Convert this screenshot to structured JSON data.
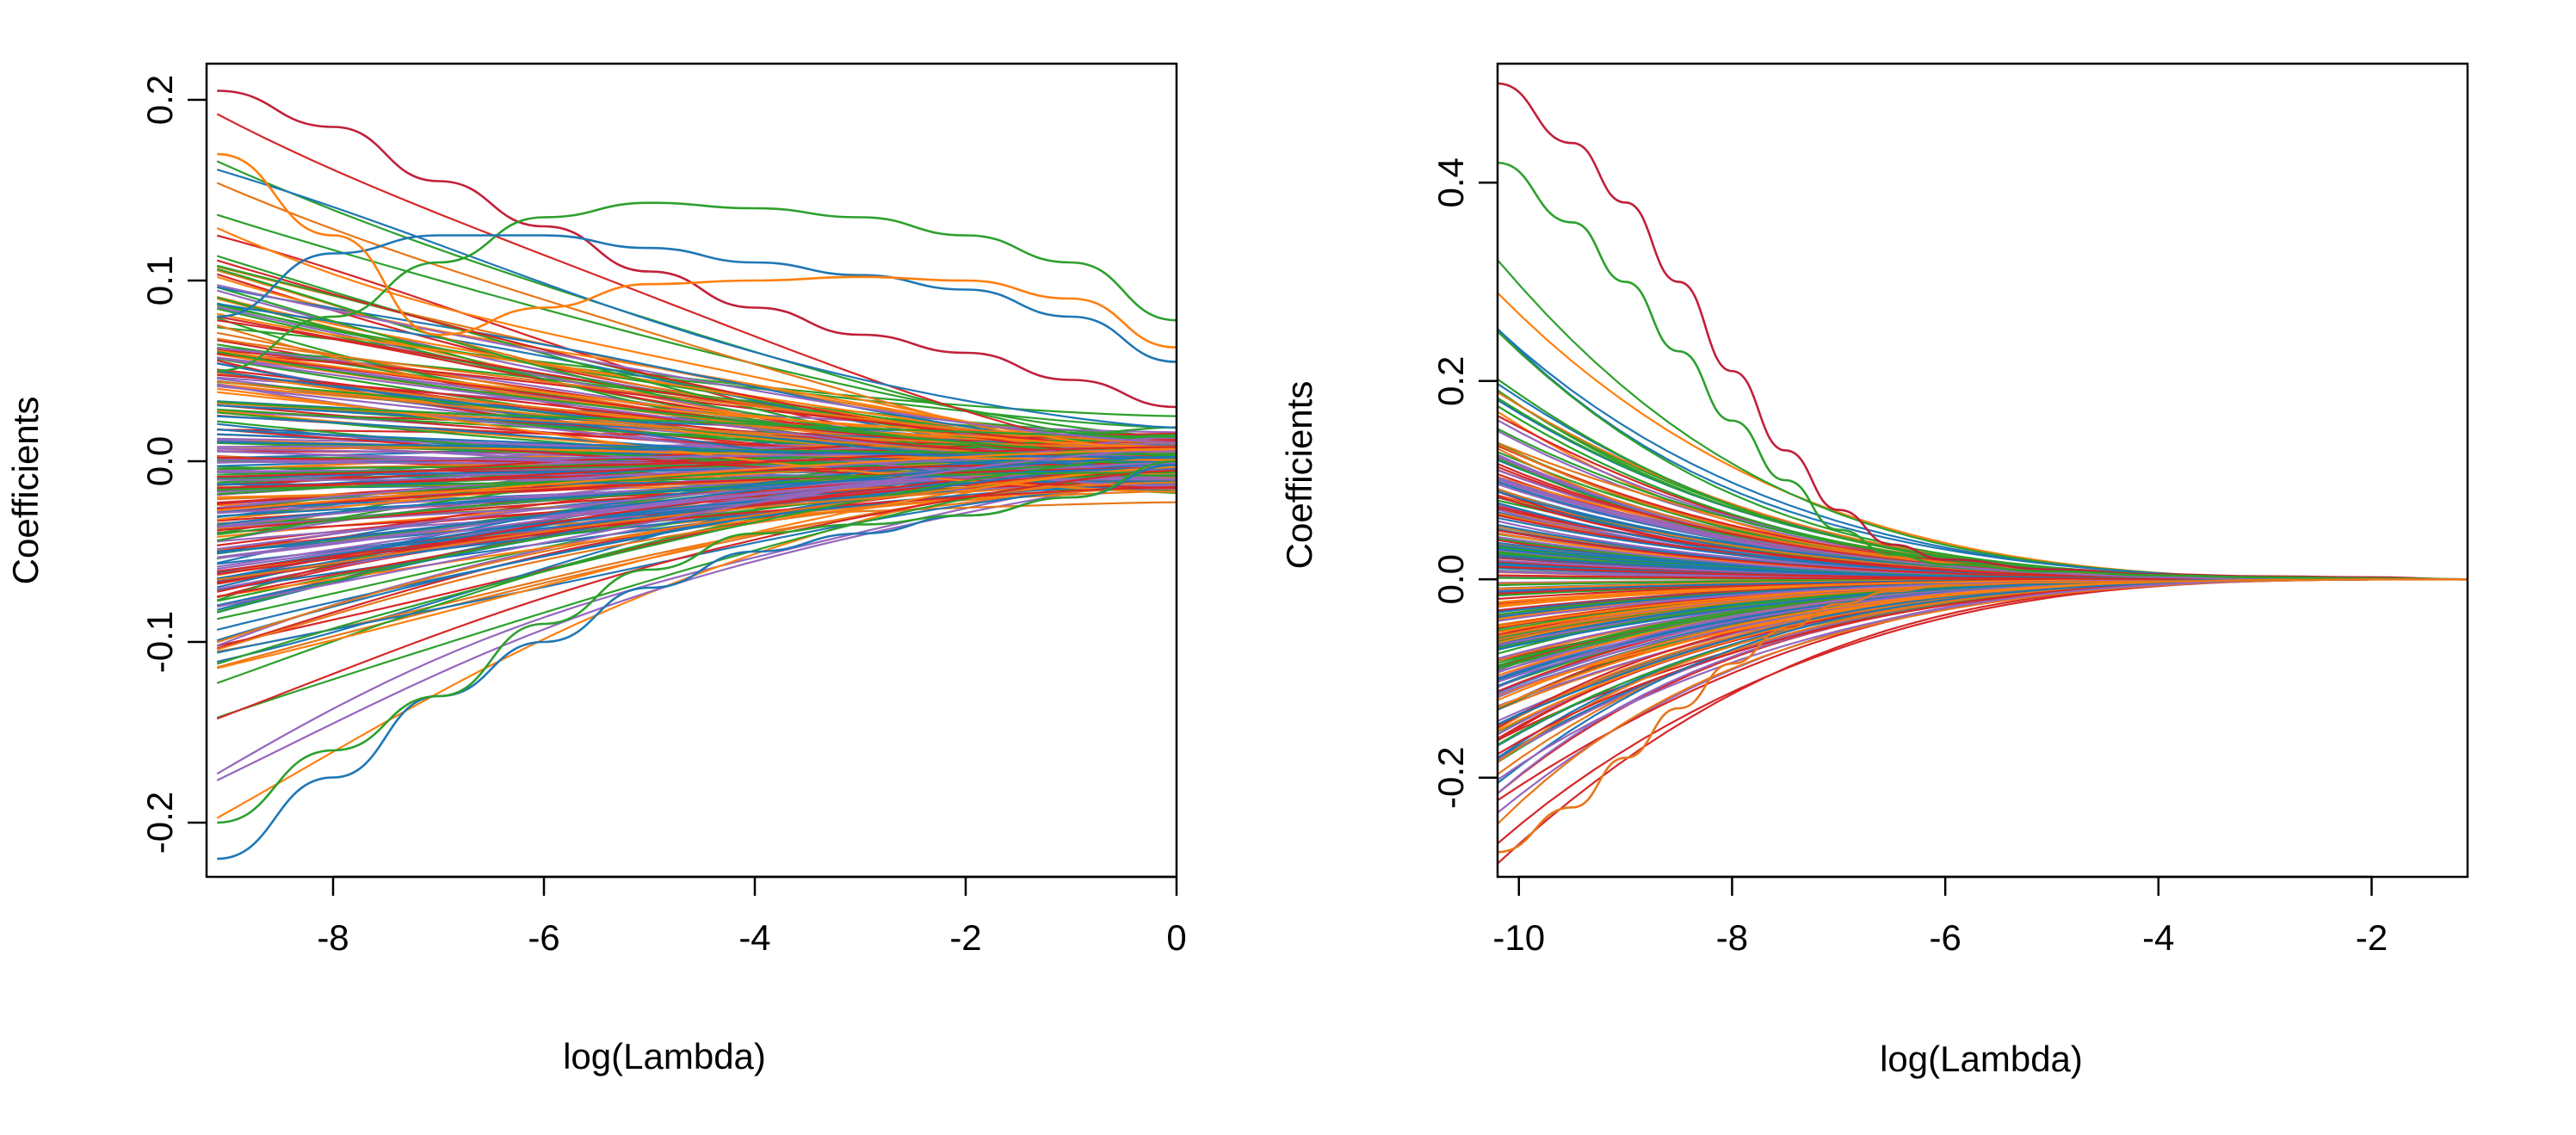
{
  "colors": [
    "#d62728",
    "#2ca02c",
    "#1f77b4",
    "#9467bd",
    "#e6771a",
    "#d62728",
    "#2ca02c",
    "#1f77b4",
    "#9467bd",
    "#ff7f0e"
  ],
  "chart_data": [
    {
      "type": "line",
      "series_description": "coefficient paths (hundreds of lines)",
      "xlabel": "log(Lambda)",
      "ylabel": "Coefficients",
      "xlim": [
        -9.2,
        0
      ],
      "ylim": [
        -0.23,
        0.22
      ],
      "xticks": [
        -8,
        -6,
        -4,
        -2,
        0
      ],
      "xtick_labels": [
        "-8",
        "-6",
        "-4",
        "-2",
        "0"
      ],
      "yticks": [
        -0.2,
        -0.1,
        0.0,
        0.1,
        0.2
      ],
      "ytick_labels": [
        "-0.2",
        "-0.1",
        "0.0",
        "0.1",
        "0.2"
      ],
      "grid": false,
      "highlighted_paths": [
        {
          "color": "#c0203a",
          "x": [
            -9.1,
            -8,
            -7,
            -6,
            -5,
            -4,
            -3,
            -2,
            -1,
            0
          ],
          "y": [
            0.205,
            0.185,
            0.155,
            0.13,
            0.105,
            0.085,
            0.07,
            0.06,
            0.045,
            0.03
          ]
        },
        {
          "color": "#2ca02c",
          "x": [
            -9.1,
            -8,
            -7,
            -6,
            -5,
            -4,
            -3,
            -2,
            -1,
            0
          ],
          "y": [
            0.05,
            0.08,
            0.11,
            0.135,
            0.143,
            0.14,
            0.135,
            0.125,
            0.11,
            0.078
          ]
        },
        {
          "color": "#1f77b4",
          "x": [
            -9.1,
            -8,
            -7,
            -6,
            -5,
            -4,
            -3,
            -2,
            -1,
            0
          ],
          "y": [
            0.08,
            0.115,
            0.125,
            0.125,
            0.118,
            0.11,
            0.103,
            0.095,
            0.08,
            0.055
          ]
        },
        {
          "color": "#ff7f0e",
          "x": [
            -9.1,
            -8,
            -7,
            -6,
            -5,
            -4,
            -3,
            -2,
            -1,
            0
          ],
          "y": [
            0.17,
            0.125,
            0.07,
            0.085,
            0.098,
            0.1,
            0.102,
            0.1,
            0.09,
            0.063
          ]
        },
        {
          "color": "#1f77b4",
          "x": [
            -9.1,
            -8,
            -7,
            -6,
            -5,
            -4,
            -3,
            -2,
            -1,
            0
          ],
          "y": [
            -0.22,
            -0.175,
            -0.13,
            -0.1,
            -0.07,
            -0.05,
            -0.04,
            -0.03,
            -0.02,
            -0.002
          ]
        },
        {
          "color": "#2ca02c",
          "x": [
            -9.1,
            -8,
            -7,
            -6,
            -5,
            -4,
            -3,
            -2,
            -1,
            0
          ],
          "y": [
            -0.2,
            -0.16,
            -0.13,
            -0.09,
            -0.06,
            -0.04,
            -0.035,
            -0.03,
            -0.02,
            0.0
          ]
        }
      ],
      "random_paths": {
        "count": 260,
        "start_spread": 0.12,
        "end_spread": 0.008,
        "seed": 7
      }
    },
    {
      "type": "line",
      "series_description": "coefficient paths (hundreds of lines)",
      "xlabel": "log(Lambda)",
      "ylabel": "Coefficients",
      "xlim": [
        -10.2,
        -1.1
      ],
      "ylim": [
        -0.3,
        0.52
      ],
      "xticks": [
        -10,
        -8,
        -6,
        -4,
        -2
      ],
      "xtick_labels": [
        "-10",
        "-8",
        "-6",
        "-4",
        "-2"
      ],
      "yticks": [
        -0.2,
        0.0,
        0.2,
        0.4
      ],
      "ytick_labels": [
        "-0.2",
        "0.0",
        "0.2",
        "0.4"
      ],
      "grid": false,
      "highlighted_paths": [
        {
          "color": "#c0203a",
          "x": [
            -10.2,
            -9.5,
            -9,
            -8.5,
            -8,
            -7.5,
            -7,
            -6.5,
            -6,
            -5,
            -4,
            -3,
            -2,
            -1.1
          ],
          "y": [
            0.5,
            0.44,
            0.38,
            0.3,
            0.21,
            0.13,
            0.07,
            0.035,
            0.02,
            0.01,
            0.005,
            0.003,
            0.002,
            0.0
          ]
        },
        {
          "color": "#2ca02c",
          "x": [
            -10.2,
            -9.5,
            -9,
            -8.5,
            -8,
            -7.5,
            -7,
            -6.5,
            -6,
            -5,
            -4,
            -3,
            -2,
            -1.1
          ],
          "y": [
            0.42,
            0.36,
            0.3,
            0.23,
            0.16,
            0.1,
            0.05,
            0.025,
            0.015,
            0.008,
            0.004,
            0.002,
            0.001,
            0.0
          ]
        },
        {
          "color": "#e6771a",
          "x": [
            -10.2,
            -9.5,
            -9,
            -8.5,
            -8,
            -7.5,
            -7,
            -6.5,
            -6,
            -5,
            -4,
            -3,
            -2,
            -1.1
          ],
          "y": [
            -0.275,
            -0.23,
            -0.18,
            -0.13,
            -0.085,
            -0.05,
            -0.025,
            -0.012,
            -0.006,
            -0.003,
            -0.002,
            -0.001,
            0.0,
            0.0
          ]
        }
      ],
      "random_paths": {
        "count": 260,
        "start_spread": 0.2,
        "end_spread": 0.0,
        "seed": 13
      }
    }
  ]
}
